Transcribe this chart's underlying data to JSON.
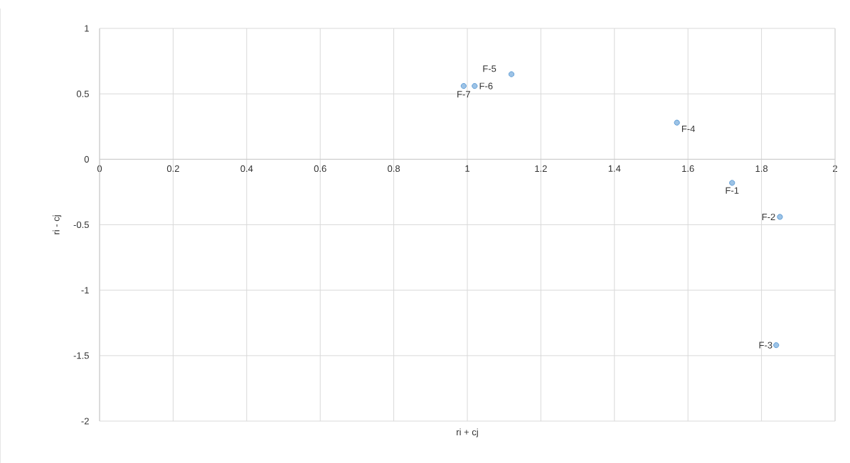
{
  "chart_data": {
    "type": "scatter",
    "xlabel": "ri + cj",
    "ylabel": "ri - cj",
    "x": [
      1.72,
      1.85,
      1.84,
      1.57,
      1.12,
      1.02,
      0.99
    ],
    "series": [
      {
        "color": "#5b9bd5",
        "values": [
          -0.18,
          -0.44,
          -1.42,
          0.28,
          0.65,
          0.56,
          0.56
        ]
      }
    ],
    "xlim": [
      0,
      2
    ],
    "xticks": [
      0,
      0.2,
      0.4,
      0.6,
      0.8,
      1,
      1.2,
      1.4,
      1.6,
      1.8,
      2
    ],
    "ylim": [
      -2,
      1
    ],
    "yticks": [
      -2,
      -1.5,
      -1,
      -0.5,
      0,
      0.5,
      1
    ],
    "grid": true,
    "marker": "circle",
    "annotations": [
      {
        "text": "F-1",
        "x": 1.72,
        "y": -0.18
      },
      {
        "text": "F-2",
        "x": 1.85,
        "y": -0.44
      },
      {
        "text": "F-3",
        "x": 1.84,
        "y": -1.42
      },
      {
        "text": "F-4",
        "x": 1.57,
        "y": 0.28
      },
      {
        "text": "F-5",
        "x": 1.12,
        "y": 0.65
      },
      {
        "text": "F-6",
        "x": 1.02,
        "y": 0.56
      },
      {
        "text": "F-7",
        "x": 0.99,
        "y": 0.56
      }
    ]
  }
}
